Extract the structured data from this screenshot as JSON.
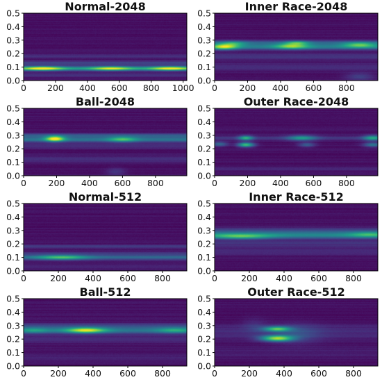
{
  "colormap": [
    "#440154",
    "#482878",
    "#3e4989",
    "#31688e",
    "#26828e",
    "#1f9e89",
    "#35b779",
    "#6ece58",
    "#b5de2b",
    "#fde725"
  ],
  "background_color": "#440154",
  "chart_data": [
    {
      "type": "heatmap",
      "title": "Normal-2048",
      "xlim": [
        0,
        1023
      ],
      "ylim": [
        0,
        0.5
      ],
      "xticks": [
        "0",
        "200",
        "400",
        "600",
        "800",
        "1000"
      ],
      "yticks": [
        "0.0",
        "0.1",
        "0.2",
        "0.3",
        "0.4",
        "0.5"
      ],
      "bands": [
        {
          "y": 0.09,
          "width": 0.012,
          "intensity": 0.45
        },
        {
          "y": 0.13,
          "width": 0.01,
          "intensity": 0.18
        },
        {
          "y": 0.18,
          "width": 0.008,
          "intensity": 0.12
        },
        {
          "y": 0.04,
          "width": 0.01,
          "intensity": 0.1
        }
      ],
      "hotspots": [
        {
          "x": 120,
          "y": 0.09,
          "sx": 90,
          "sy": 0.01,
          "intensity": 0.6
        },
        {
          "x": 550,
          "y": 0.09,
          "sx": 90,
          "sy": 0.01,
          "intensity": 0.5
        },
        {
          "x": 920,
          "y": 0.09,
          "sx": 90,
          "sy": 0.01,
          "intensity": 0.55
        }
      ]
    },
    {
      "type": "heatmap",
      "title": "Inner Race-2048",
      "xlim": [
        0,
        990
      ],
      "ylim": [
        0,
        0.5
      ],
      "xticks": [
        "0",
        "200",
        "400",
        "600",
        "800"
      ],
      "yticks": [
        "0.0",
        "0.1",
        "0.2",
        "0.3",
        "0.4",
        "0.5"
      ],
      "bands": [
        {
          "y": 0.25,
          "width": 0.015,
          "intensity": 0.38
        },
        {
          "y": 0.28,
          "width": 0.012,
          "intensity": 0.25
        },
        {
          "y": 0.18,
          "width": 0.015,
          "intensity": 0.12
        },
        {
          "y": 0.1,
          "width": 0.02,
          "intensity": 0.08
        }
      ],
      "hotspots": [
        {
          "x": 60,
          "y": 0.25,
          "sx": 55,
          "sy": 0.014,
          "intensity": 0.55
        },
        {
          "x": 110,
          "y": 0.275,
          "sx": 55,
          "sy": 0.012,
          "intensity": 0.3
        },
        {
          "x": 470,
          "y": 0.255,
          "sx": 70,
          "sy": 0.014,
          "intensity": 0.45
        },
        {
          "x": 500,
          "y": 0.28,
          "sx": 50,
          "sy": 0.01,
          "intensity": 0.35
        },
        {
          "x": 880,
          "y": 0.265,
          "sx": 70,
          "sy": 0.014,
          "intensity": 0.4
        },
        {
          "x": 880,
          "y": 0.03,
          "sx": 60,
          "sy": 0.02,
          "intensity": 0.15
        }
      ]
    },
    {
      "type": "heatmap",
      "title": "Ball-2048",
      "xlim": [
        0,
        990
      ],
      "ylim": [
        0,
        0.5
      ],
      "xticks": [
        "0",
        "200",
        "400",
        "600",
        "800"
      ],
      "yticks": [
        "0.0",
        "0.1",
        "0.2",
        "0.3",
        "0.4",
        "0.5"
      ],
      "bands": [
        {
          "y": 0.27,
          "width": 0.015,
          "intensity": 0.35
        },
        {
          "y": 0.3,
          "width": 0.01,
          "intensity": 0.2
        },
        {
          "y": 0.22,
          "width": 0.012,
          "intensity": 0.1
        },
        {
          "y": 0.12,
          "width": 0.02,
          "intensity": 0.08
        }
      ],
      "hotspots": [
        {
          "x": 190,
          "y": 0.275,
          "sx": 40,
          "sy": 0.014,
          "intensity": 0.7
        },
        {
          "x": 600,
          "y": 0.27,
          "sx": 60,
          "sy": 0.014,
          "intensity": 0.35
        },
        {
          "x": 560,
          "y": 0.03,
          "sx": 40,
          "sy": 0.02,
          "intensity": 0.12
        }
      ]
    },
    {
      "type": "heatmap",
      "title": "Outer Race-2048",
      "xlim": [
        0,
        990
      ],
      "ylim": [
        0,
        0.5
      ],
      "xticks": [
        "0",
        "200",
        "400",
        "600",
        "800"
      ],
      "yticks": [
        "0.0",
        "0.1",
        "0.2",
        "0.3",
        "0.4",
        "0.5"
      ],
      "bands": [
        {
          "y": 0.28,
          "width": 0.012,
          "intensity": 0.12
        },
        {
          "y": 0.05,
          "width": 0.01,
          "intensity": 0.08
        }
      ],
      "hotspots": [
        {
          "x": 30,
          "y": 0.235,
          "sx": 35,
          "sy": 0.012,
          "intensity": 0.3
        },
        {
          "x": 190,
          "y": 0.28,
          "sx": 30,
          "sy": 0.012,
          "intensity": 0.5
        },
        {
          "x": 190,
          "y": 0.23,
          "sx": 35,
          "sy": 0.012,
          "intensity": 0.65
        },
        {
          "x": 530,
          "y": 0.28,
          "sx": 60,
          "sy": 0.014,
          "intensity": 0.4
        },
        {
          "x": 560,
          "y": 0.23,
          "sx": 35,
          "sy": 0.012,
          "intensity": 0.25
        },
        {
          "x": 960,
          "y": 0.28,
          "sx": 40,
          "sy": 0.014,
          "intensity": 0.45
        },
        {
          "x": 960,
          "y": 0.23,
          "sx": 40,
          "sy": 0.012,
          "intensity": 0.35
        }
      ]
    },
    {
      "type": "heatmap",
      "title": "Normal-512",
      "xlim": [
        0,
        940
      ],
      "ylim": [
        0,
        0.5
      ],
      "xticks": [
        "0",
        "200",
        "400",
        "600",
        "800"
      ],
      "yticks": [
        "0.0",
        "0.1",
        "0.2",
        "0.3",
        "0.4",
        "0.5"
      ],
      "bands": [
        {
          "y": 0.1,
          "width": 0.015,
          "intensity": 0.28
        },
        {
          "y": 0.18,
          "width": 0.01,
          "intensity": 0.14
        },
        {
          "y": 0.13,
          "width": 0.01,
          "intensity": 0.1
        },
        {
          "y": 0.03,
          "width": 0.01,
          "intensity": 0.06
        }
      ],
      "hotspots": [
        {
          "x": 220,
          "y": 0.1,
          "sx": 100,
          "sy": 0.012,
          "intensity": 0.4
        }
      ]
    },
    {
      "type": "heatmap",
      "title": "Inner Race-512",
      "xlim": [
        0,
        940
      ],
      "ylim": [
        0,
        0.5
      ],
      "xticks": [
        "0",
        "200",
        "400",
        "600",
        "800"
      ],
      "yticks": [
        "0.0",
        "0.1",
        "0.2",
        "0.3",
        "0.4",
        "0.5"
      ],
      "bands": [
        {
          "y": 0.265,
          "width": 0.018,
          "intensity": 0.42
        },
        {
          "y": 0.3,
          "width": 0.015,
          "intensity": 0.15
        },
        {
          "y": 0.2,
          "width": 0.02,
          "intensity": 0.1
        },
        {
          "y": 0.14,
          "width": 0.02,
          "intensity": 0.08
        }
      ],
      "hotspots": [
        {
          "x": 150,
          "y": 0.255,
          "sx": 120,
          "sy": 0.014,
          "intensity": 0.35
        },
        {
          "x": 890,
          "y": 0.27,
          "sx": 80,
          "sy": 0.014,
          "intensity": 0.25
        }
      ]
    },
    {
      "type": "heatmap",
      "title": "Ball-512",
      "xlim": [
        0,
        940
      ],
      "ylim": [
        0,
        0.5
      ],
      "xticks": [
        "0",
        "200",
        "400",
        "600",
        "800"
      ],
      "yticks": [
        "0.0",
        "0.1",
        "0.2",
        "0.3",
        "0.4",
        "0.5"
      ],
      "bands": [
        {
          "y": 0.265,
          "width": 0.018,
          "intensity": 0.35
        },
        {
          "y": 0.3,
          "width": 0.012,
          "intensity": 0.14
        },
        {
          "y": 0.2,
          "width": 0.02,
          "intensity": 0.08
        },
        {
          "y": 0.06,
          "width": 0.02,
          "intensity": 0.06
        }
      ],
      "hotspots": [
        {
          "x": 360,
          "y": 0.265,
          "sx": 80,
          "sy": 0.014,
          "intensity": 0.6
        },
        {
          "x": 60,
          "y": 0.265,
          "sx": 60,
          "sy": 0.014,
          "intensity": 0.2
        },
        {
          "x": 870,
          "y": 0.265,
          "sx": 70,
          "sy": 0.014,
          "intensity": 0.25
        }
      ]
    },
    {
      "type": "heatmap",
      "title": "Outer Race-512",
      "xlim": [
        0,
        940
      ],
      "ylim": [
        0,
        0.5
      ],
      "xticks": [
        "0",
        "200",
        "400",
        "600",
        "800"
      ],
      "yticks": [
        "0.0",
        "0.1",
        "0.2",
        "0.3",
        "0.4",
        "0.5"
      ],
      "bands": [
        {
          "y": 0.25,
          "width": 0.04,
          "intensity": 0.08
        },
        {
          "y": 0.1,
          "width": 0.03,
          "intensity": 0.04
        }
      ],
      "hotspots": [
        {
          "x": 360,
          "y": 0.275,
          "sx": 55,
          "sy": 0.013,
          "intensity": 0.6
        },
        {
          "x": 360,
          "y": 0.205,
          "sx": 65,
          "sy": 0.015,
          "intensity": 0.75
        },
        {
          "x": 470,
          "y": 0.24,
          "sx": 100,
          "sy": 0.05,
          "intensity": 0.15
        },
        {
          "x": 230,
          "y": 0.3,
          "sx": 50,
          "sy": 0.04,
          "intensity": 0.08
        }
      ]
    }
  ]
}
